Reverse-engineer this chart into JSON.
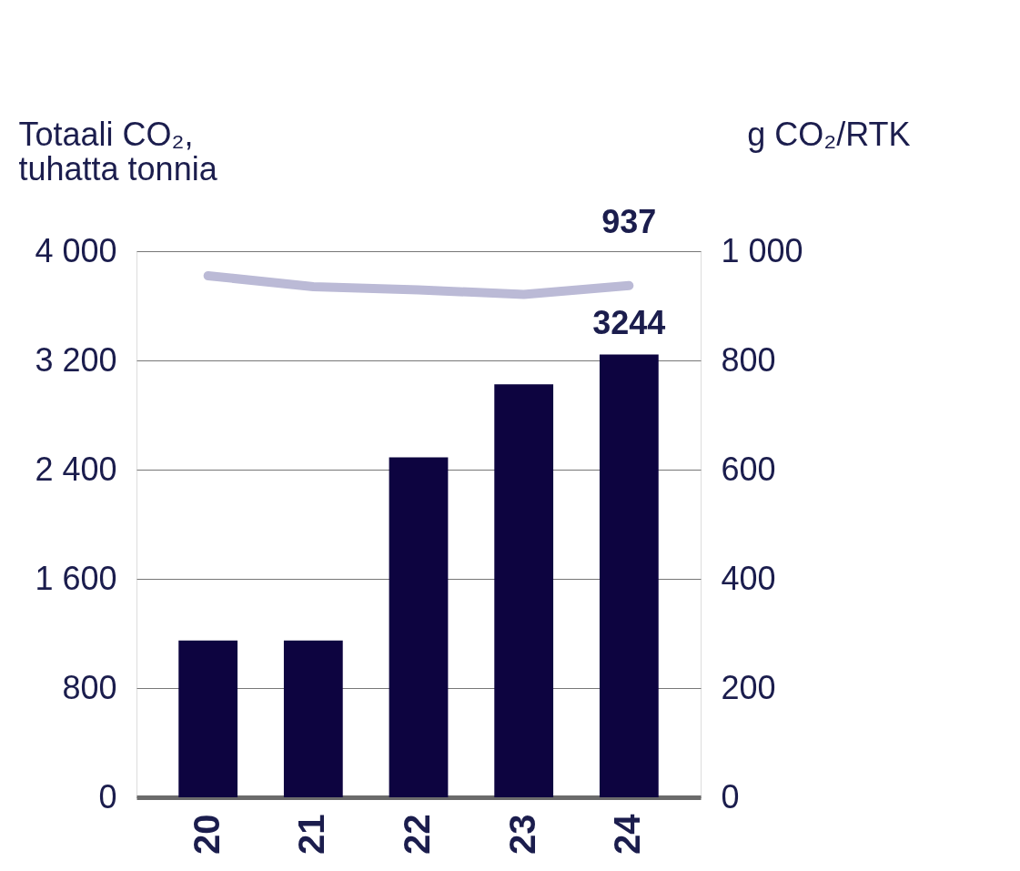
{
  "chart_data": {
    "type": "bar",
    "ylabel": "Totaali CO₂,\ntuhatta tonnia",
    "y2label": "g CO₂/RTK",
    "categories": [
      "20",
      "21",
      "22",
      "23",
      "24"
    ],
    "series": [
      {
        "color": "#0d0440",
        "values": [
          1148,
          1148,
          2490,
          3025,
          3244
        ],
        "value_labels": [
          null,
          null,
          null,
          null,
          "3244"
        ]
      },
      {
        "type": "line",
        "axis": "y2",
        "color": "#bbbad6",
        "values": [
          955,
          935,
          929,
          921,
          937
        ],
        "value_labels": [
          null,
          null,
          null,
          null,
          "937"
        ]
      }
    ],
    "ylim": [
      0,
      4000
    ],
    "yticks": [
      0,
      {
        "value": 800,
        "label": "800"
      },
      {
        "value": 1600,
        "label": "1 600"
      },
      {
        "value": 2400,
        "label": "2 400"
      },
      {
        "value": 3200,
        "label": "3 200"
      },
      {
        "value": 4000,
        "label": "4 000"
      }
    ],
    "y2lim": [
      0,
      1000
    ],
    "y2ticks": [
      0,
      200,
      400,
      600,
      800,
      {
        "value": 1000,
        "label": "1 000"
      }
    ],
    "grid": "y",
    "marker": "none",
    "line_style": "solid"
  }
}
